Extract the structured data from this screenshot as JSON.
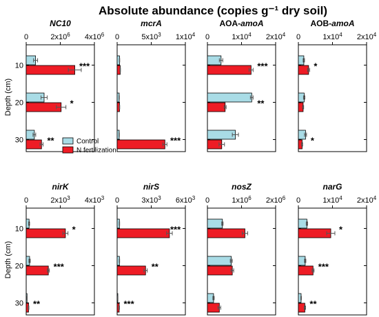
{
  "figure_title": "Absolute abundance (copies g⁻¹ dry soil)",
  "y_label": "Depth (cm)",
  "colors": {
    "control": "#a9dce6",
    "n_fertilization": "#ee1c25",
    "stroke": "#000000"
  },
  "legend": [
    "Control",
    "N fertilization"
  ],
  "chart_data": [
    {
      "type": "bar",
      "orientation": "horizontal",
      "title": "NC10",
      "title_parts": [
        "NC10"
      ],
      "categories": [
        "10",
        "20",
        "30"
      ],
      "xlim": [
        0,
        4000000
      ],
      "xticks": [
        0,
        2000000,
        4000000
      ],
      "xtick_labels": [
        "0",
        "2x10^6",
        "4x10^6"
      ],
      "series": [
        {
          "name": "Control",
          "values": [
            550000,
            1050000,
            480000
          ],
          "errors": [
            120000,
            180000,
            80000
          ]
        },
        {
          "name": "N fertilization",
          "values": [
            2850000,
            2050000,
            900000
          ],
          "errors": [
            380000,
            280000,
            90000
          ]
        }
      ],
      "significance": [
        "***",
        "*",
        "**"
      ]
    },
    {
      "type": "bar",
      "orientation": "horizontal",
      "title": "mcrA",
      "title_parts": [
        "mcrA"
      ],
      "categories": [
        "10",
        "20",
        "30"
      ],
      "xlim": [
        0,
        10000
      ],
      "xticks": [
        0,
        5000,
        10000
      ],
      "xtick_labels": [
        "0",
        "5x10^3",
        "1x10^4"
      ],
      "series": [
        {
          "name": "Control",
          "values": [
            350,
            300,
            300
          ],
          "errors": [
            30,
            30,
            30
          ]
        },
        {
          "name": "N fertilization",
          "values": [
            450,
            350,
            7000
          ],
          "errors": [
            40,
            30,
            300
          ]
        }
      ],
      "significance": [
        "",
        "",
        "***"
      ]
    },
    {
      "type": "bar",
      "orientation": "horizontal",
      "title": "AOA-amoA",
      "title_parts": [
        "AOA-",
        "amoA"
      ],
      "categories": [
        "10",
        "20",
        "30"
      ],
      "xlim": [
        0,
        20000
      ],
      "xticks": [
        0,
        10000,
        20000
      ],
      "xtick_labels": [
        "0",
        "1x10^4",
        "2x10^4"
      ],
      "series": [
        {
          "name": "Control",
          "values": [
            4000,
            13000,
            8200
          ],
          "errors": [
            500,
            400,
            900
          ]
        },
        {
          "name": "N fertilization",
          "values": [
            12800,
            5200,
            4200
          ],
          "errors": [
            600,
            300,
            800
          ]
        }
      ],
      "significance": [
        "***",
        "**",
        ""
      ]
    },
    {
      "type": "bar",
      "orientation": "horizontal",
      "title": "AOB-amoA",
      "title_parts": [
        "AOB-",
        "amoA"
      ],
      "categories": [
        "10",
        "20",
        "30"
      ],
      "xlim": [
        0,
        20000
      ],
      "xticks": [
        0,
        10000,
        20000
      ],
      "xtick_labels": [
        "0",
        "1x10^4",
        "2x10^4"
      ],
      "series": [
        {
          "name": "Control",
          "values": [
            1600,
            1700,
            2100
          ],
          "errors": [
            200,
            200,
            300
          ]
        },
        {
          "name": "N fertilization",
          "values": [
            3000,
            1400,
            1100
          ],
          "errors": [
            300,
            150,
            150
          ]
        }
      ],
      "significance": [
        "*",
        "",
        "*"
      ]
    },
    {
      "type": "bar",
      "orientation": "horizontal",
      "title": "nirK",
      "title_parts": [
        "nirK"
      ],
      "categories": [
        "10",
        "20",
        "30"
      ],
      "xlim": [
        0,
        4000
      ],
      "xticks": [
        0,
        2000,
        4000
      ],
      "xtick_labels": [
        "0",
        "2x10^3",
        "4x10^3"
      ],
      "series": [
        {
          "name": "Control",
          "values": [
            170,
            200,
            50
          ],
          "errors": [
            30,
            40,
            10
          ]
        },
        {
          "name": "N fertilization",
          "values": [
            2300,
            1300,
            140
          ],
          "errors": [
            150,
            60,
            20
          ]
        }
      ],
      "significance": [
        "*",
        "***",
        "**"
      ]
    },
    {
      "type": "bar",
      "orientation": "horizontal",
      "title": "nirS",
      "title_parts": [
        "nirS"
      ],
      "categories": [
        "10",
        "20",
        "30"
      ],
      "xlim": [
        0,
        6000
      ],
      "xticks": [
        0,
        3000,
        6000
      ],
      "xtick_labels": [
        "0",
        "3x10^3",
        "6x10^3"
      ],
      "series": [
        {
          "name": "Control",
          "values": [
            200,
            200,
            60
          ],
          "errors": [
            20,
            20,
            10
          ]
        },
        {
          "name": "N fertilization",
          "values": [
            4600,
            2500,
            180
          ],
          "errors": [
            250,
            150,
            30
          ]
        }
      ],
      "significance": [
        "***",
        "**",
        "***"
      ]
    },
    {
      "type": "bar",
      "orientation": "horizontal",
      "title": "nosZ",
      "title_parts": [
        "nosZ"
      ],
      "categories": [
        "10",
        "20",
        "30"
      ],
      "xlim": [
        0,
        2000000
      ],
      "xticks": [
        0,
        1000000,
        2000000
      ],
      "xtick_labels": [
        "0",
        "1x10^6",
        "2x10^6"
      ],
      "series": [
        {
          "name": "Control",
          "values": [
            440000,
            700000,
            180000
          ],
          "errors": [
            20000,
            30000,
            20000
          ]
        },
        {
          "name": "N fertilization",
          "values": [
            1100000,
            730000,
            350000
          ],
          "errors": [
            80000,
            40000,
            40000
          ]
        }
      ],
      "significance": [
        "",
        "",
        ""
      ]
    },
    {
      "type": "bar",
      "orientation": "horizontal",
      "title": "narG",
      "title_parts": [
        "narG"
      ],
      "categories": [
        "10",
        "20",
        "30"
      ],
      "xlim": [
        0,
        20000
      ],
      "xticks": [
        0,
        10000,
        20000
      ],
      "xtick_labels": [
        "0",
        "1x10^4",
        "2x10^4"
      ],
      "series": [
        {
          "name": "Control",
          "values": [
            2500,
            2000,
            800
          ],
          "errors": [
            200,
            200,
            100
          ]
        },
        {
          "name": "N fertilization",
          "values": [
            9500,
            4300,
            1900
          ],
          "errors": [
            1200,
            300,
            200
          ]
        }
      ],
      "significance": [
        "*",
        "***",
        "**"
      ]
    }
  ]
}
